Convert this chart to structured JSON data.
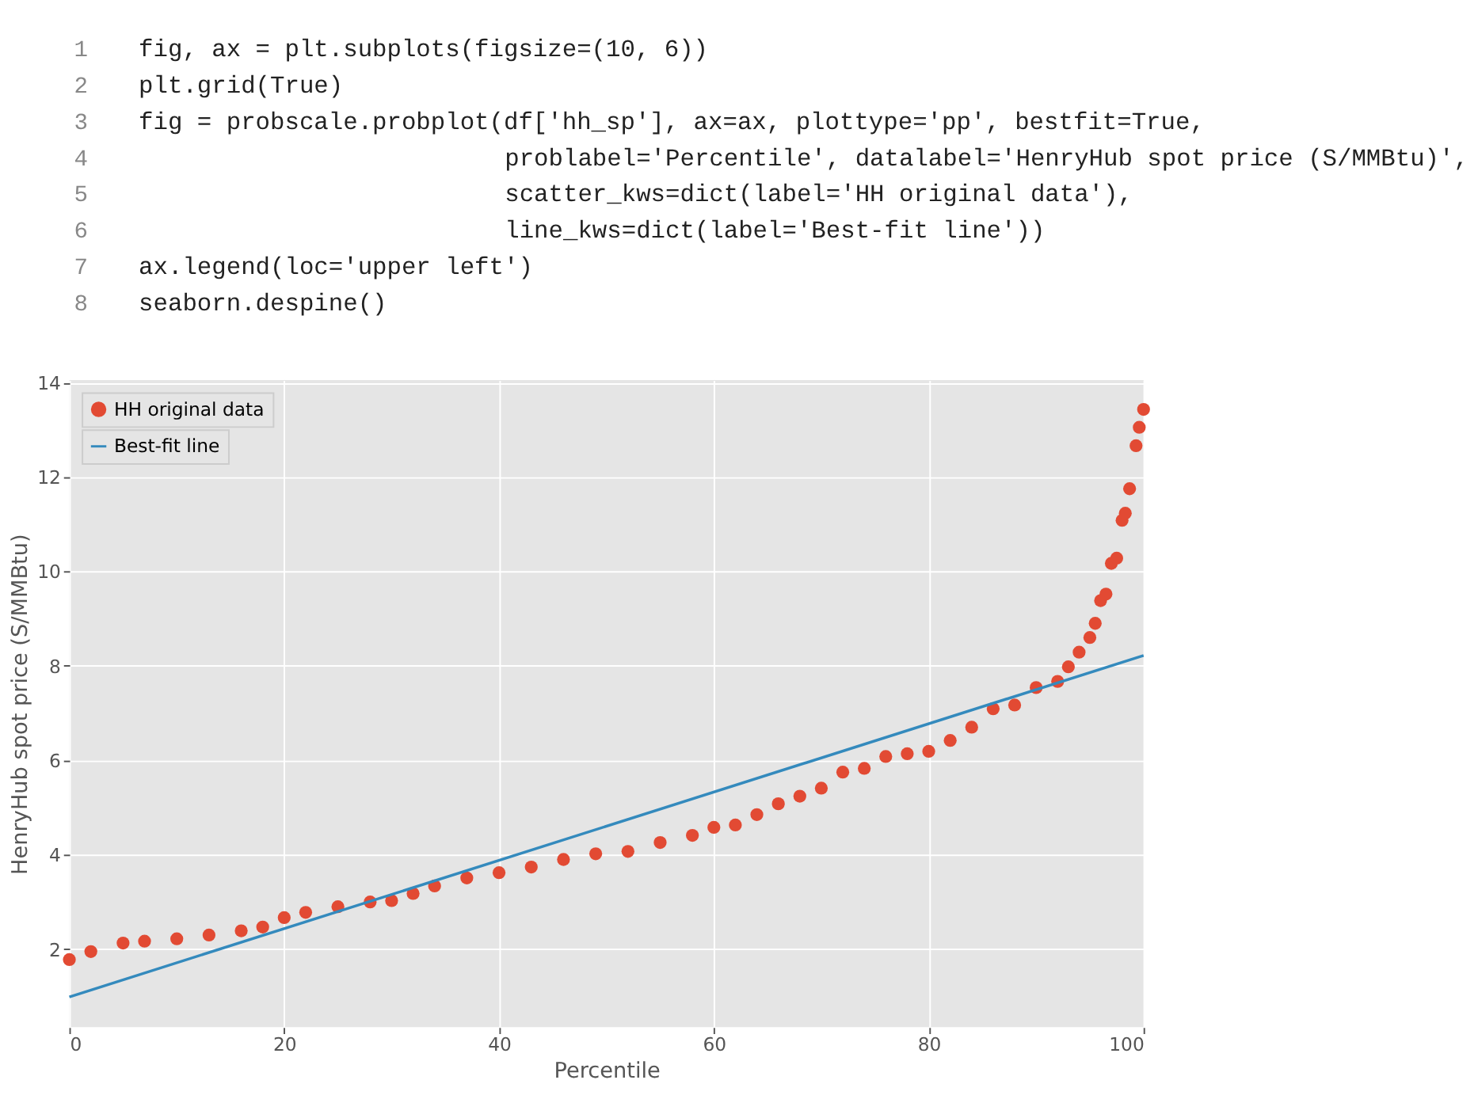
{
  "chart_data": {
    "type": "scatter",
    "annotations": [
      "1",
      "fig, ax = plt.subplots(figsize=(10, 6))",
      "2",
      "plt.grid(True)",
      "3",
      "fig = probscale.probplot(df['hh_sp'], ax=ax, plottype='pp', bestfit=True,",
      "4",
      "                         problabel='Percentile', datalabel='HenryHub spot price (S/MMBtu)',",
      "5",
      "                         scatter_kws=dict(label='HH original data'),",
      "6",
      "                         line_kws=dict(label='Best-fit line'))",
      "7",
      "ax.legend(loc='upper left')",
      "8",
      "seaborn.despine()"
    ],
    "xlabel": "Percentile",
    "ylabel": "HenryHub spot price (S/MMBtu)",
    "xlim": [
      0,
      100
    ],
    "ylim": [
      0.35,
      14.05
    ],
    "xticks": [
      0,
      20,
      40,
      60,
      80,
      100
    ],
    "yticks": [
      2,
      4,
      6,
      8,
      10,
      12,
      14
    ],
    "grid": true,
    "legend": "top left",
    "series": [
      {
        "name": "HH original data",
        "marker": "circle",
        "color": "#e24a33",
        "x": [
          0,
          2,
          5,
          7,
          10,
          13,
          16,
          18,
          20,
          22,
          25,
          28,
          30,
          32,
          34,
          37,
          40,
          43,
          46,
          49,
          52,
          55,
          58,
          60,
          62,
          64,
          66,
          68,
          70,
          72,
          74,
          76,
          78,
          80,
          82,
          84,
          86,
          88,
          90,
          92,
          93,
          94,
          95,
          95.5,
          96,
          96.5,
          97,
          97.5,
          98,
          98.3,
          98.7,
          99.3,
          99.6,
          100
        ],
        "values": [
          1.78,
          1.95,
          2.13,
          2.17,
          2.22,
          2.3,
          2.39,
          2.47,
          2.67,
          2.78,
          2.9,
          3.0,
          3.03,
          3.18,
          3.34,
          3.51,
          3.62,
          3.74,
          3.9,
          4.02,
          4.07,
          4.26,
          4.41,
          4.58,
          4.63,
          4.85,
          5.08,
          5.24,
          5.41,
          5.75,
          5.83,
          6.08,
          6.14,
          6.19,
          6.42,
          6.7,
          7.09,
          7.17,
          7.54,
          7.67,
          7.98,
          8.29,
          8.6,
          8.9,
          9.38,
          9.52,
          10.17,
          10.28,
          11.08,
          11.23,
          11.75,
          12.66,
          13.05,
          13.43
        ]
      },
      {
        "name": "Best-fit line",
        "type": "line",
        "line_style": "solid",
        "color": "#348abd",
        "x": [
          0,
          100
        ],
        "values": [
          0.99,
          8.22
        ]
      }
    ]
  }
}
